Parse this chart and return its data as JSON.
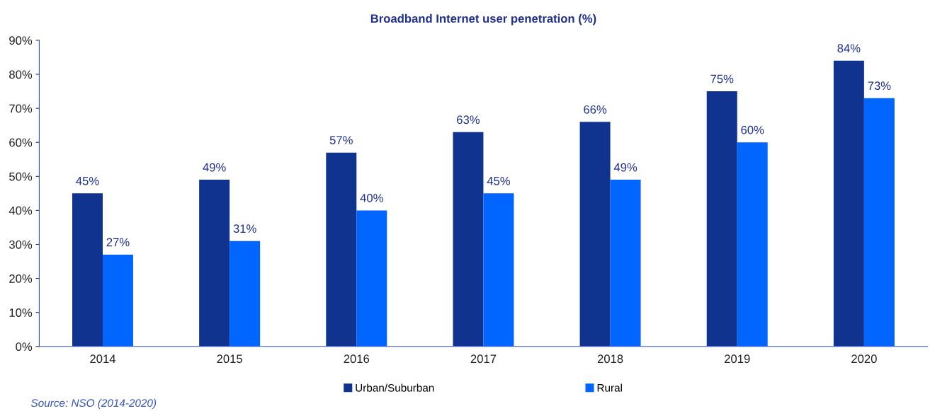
{
  "chart_data": {
    "type": "bar",
    "title": "Broadband Internet user penetration (%)",
    "categories": [
      "2014",
      "2015",
      "2016",
      "2017",
      "2018",
      "2019",
      "2020"
    ],
    "series": [
      {
        "name": "Urban/Suburban",
        "color": "#10338f",
        "values": [
          45,
          49,
          57,
          63,
          66,
          75,
          84
        ],
        "value_labels": [
          "45%",
          "49%",
          "57%",
          "63%",
          "66%",
          "75%",
          "84%"
        ]
      },
      {
        "name": "Rural",
        "color": "#0066ff",
        "values": [
          27,
          31,
          40,
          45,
          49,
          60,
          73
        ],
        "value_labels": [
          "27%",
          "31%",
          "40%",
          "45%",
          "49%",
          "60%",
          "73%"
        ]
      }
    ],
    "ylim": [
      0,
      90
    ],
    "yticks": [
      {
        "value": 0,
        "label": "0%"
      },
      {
        "value": 10,
        "label": "10%"
      },
      {
        "value": 20,
        "label": "20%"
      },
      {
        "value": 30,
        "label": "30%"
      },
      {
        "value": 40,
        "label": "40%"
      },
      {
        "value": 50,
        "label": "50%"
      },
      {
        "value": 60,
        "label": "60%"
      },
      {
        "value": 70,
        "label": "70%"
      },
      {
        "value": 80,
        "label": "80%"
      },
      {
        "value": 90,
        "label": "90%"
      }
    ],
    "grid": false,
    "legend": "bottom",
    "annotations": [
      "Source: NSO (2014-2020)"
    ]
  }
}
